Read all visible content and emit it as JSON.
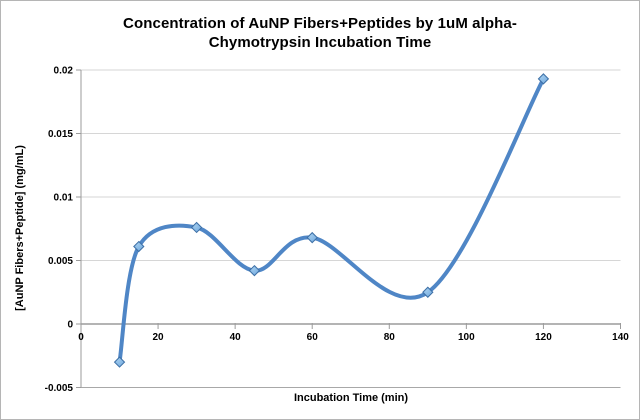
{
  "window": {
    "background": "#ffffff",
    "frame_border_color": "#b5b5b5"
  },
  "chart_data": {
    "type": "line",
    "title": "Concentration of AuNP Fibers+Peptides by 1uM alpha-Chymotrypsin Incubation Time",
    "title_lines": [
      "Concentration of AuNP Fibers+Peptides by 1uM alpha-",
      "Chymotrypsin Incubation Time"
    ],
    "xlabel": "Incubation Time (min)",
    "ylabel": "[AuNP Fibers+Peptide] (mg/mL)",
    "x": [
      10,
      15,
      30,
      45,
      60,
      90,
      120
    ],
    "y": [
      -0.003,
      0.0061,
      0.0076,
      0.0042,
      0.0068,
      0.0025,
      0.0193
    ],
    "xlim": [
      0,
      140
    ],
    "ylim": [
      -0.005,
      0.02
    ],
    "x_ticks": [
      0,
      20,
      40,
      60,
      80,
      100,
      120,
      140
    ],
    "y_ticks": [
      -0.005,
      0,
      0.005,
      0.01,
      0.015,
      0.02
    ],
    "grid": true,
    "smooth": true,
    "legend": "none",
    "marker": "diamond",
    "colors": {
      "line": "#4f86c6",
      "marker_fill": "#74abdf",
      "marker_highlight": "#9ec9ec",
      "marker_stroke": "#3d6fa5",
      "gridline": "#d6d6d6",
      "axis_line": "#9b9b9b",
      "bottom_line": "#a8a8a8",
      "tick_text": "#000000"
    }
  }
}
